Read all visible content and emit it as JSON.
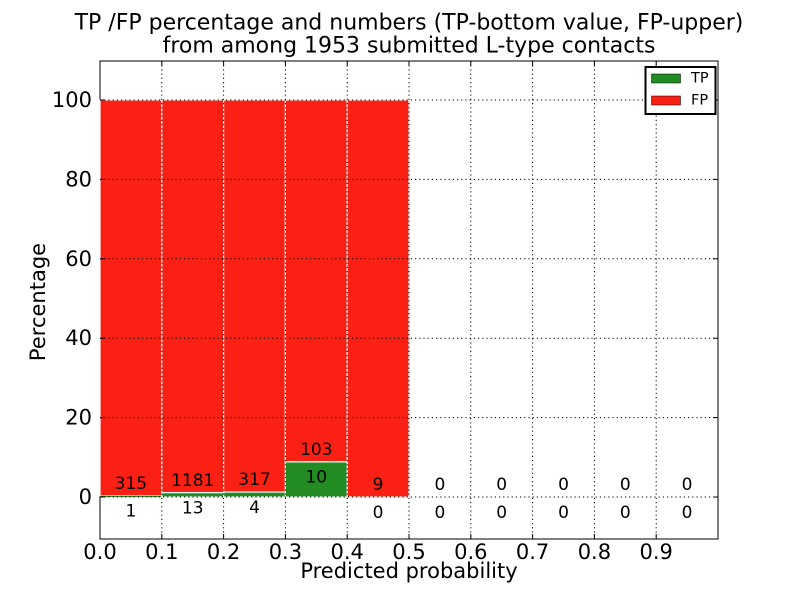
{
  "figure": {
    "background": "#ffffff"
  },
  "chart_data": {
    "type": "bar",
    "stacked": true,
    "normalized": "percent",
    "title_lines": [
      "TP /FP percentage and numbers (TP-bottom value, FP-upper)",
      "from among 1953 submitted L-type contacts"
    ],
    "xlabel": "Predicted probability",
    "ylabel": "Percentage",
    "total_contacts": 1953,
    "bin_width": 0.1,
    "bin_starts": [
      0.0,
      0.1,
      0.2,
      0.3,
      0.4,
      0.5,
      0.6,
      0.7,
      0.8,
      0.9
    ],
    "series": [
      {
        "name": "TP",
        "color": "#228b22",
        "counts": [
          1,
          13,
          4,
          10,
          0,
          0,
          0,
          0,
          0,
          0
        ]
      },
      {
        "name": "FP",
        "color": "#fa2014",
        "counts": [
          315,
          1181,
          317,
          103,
          9,
          0,
          0,
          0,
          0,
          0
        ]
      }
    ],
    "bar_edge_color": "#ffffff",
    "xtick_labels": [
      "0.0",
      "0.1",
      "0.2",
      "0.3",
      "0.4",
      "0.5",
      "0.6",
      "0.7",
      "0.8",
      "0.9"
    ],
    "ytick_values": [
      0,
      20,
      40,
      60,
      80,
      100
    ],
    "xlim": [
      0,
      1
    ],
    "ylim": [
      -10.6,
      109.8
    ],
    "grid": "dotted",
    "grid_color": "#000000",
    "text_color": "#000000",
    "legend": {
      "position": "upper right",
      "entries": [
        {
          "label": "TP",
          "color": "#228b22"
        },
        {
          "label": "FP",
          "color": "#fa2014"
        }
      ]
    }
  }
}
